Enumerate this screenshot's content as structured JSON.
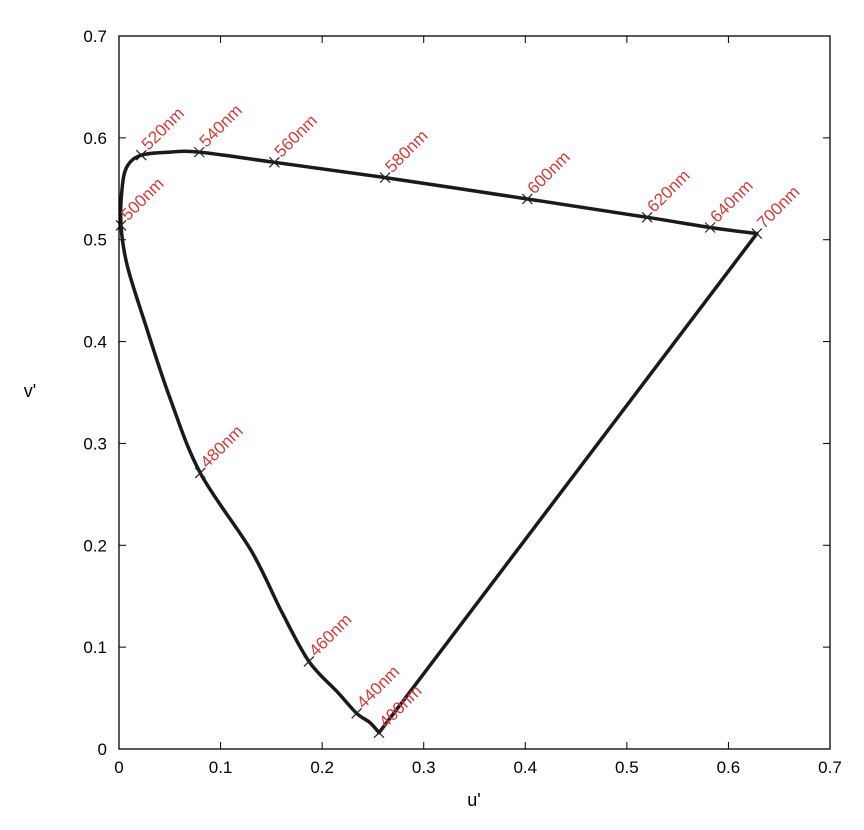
{
  "chart_data": {
    "type": "line",
    "title": "",
    "xlabel": "u'",
    "ylabel": "v'",
    "xlim": [
      0,
      0.7
    ],
    "ylim": [
      0,
      0.7
    ],
    "x_ticks": [
      "0",
      "0.1",
      "0.2",
      "0.3",
      "0.4",
      "0.5",
      "0.6",
      "0.7"
    ],
    "y_ticks": [
      "0",
      "0.1",
      "0.2",
      "0.3",
      "0.4",
      "0.5",
      "0.6",
      "0.7"
    ],
    "grid": false,
    "colors": {
      "line": "#1a1a1a",
      "label": "#d43a3a",
      "frame": "#000000"
    },
    "locus": [
      [
        0.256,
        0.016
      ],
      [
        0.247,
        0.026
      ],
      [
        0.234,
        0.035
      ],
      [
        0.215,
        0.056
      ],
      [
        0.187,
        0.086
      ],
      [
        0.16,
        0.135
      ],
      [
        0.13,
        0.195
      ],
      [
        0.08,
        0.271
      ],
      [
        0.05,
        0.345
      ],
      [
        0.025,
        0.42
      ],
      [
        0.008,
        0.475
      ],
      [
        0.002,
        0.514
      ],
      [
        0.003,
        0.55
      ],
      [
        0.008,
        0.572
      ],
      [
        0.022,
        0.583
      ],
      [
        0.05,
        0.586
      ],
      [
        0.079,
        0.586
      ],
      [
        0.153,
        0.576
      ],
      [
        0.262,
        0.561
      ],
      [
        0.402,
        0.54
      ],
      [
        0.52,
        0.522
      ],
      [
        0.582,
        0.512
      ],
      [
        0.628,
        0.506
      ]
    ],
    "purple_line": [
      [
        0.628,
        0.506
      ],
      [
        0.256,
        0.016
      ]
    ],
    "markers": [
      {
        "label": "400nm",
        "u": 0.256,
        "v": 0.016
      },
      {
        "label": "440nm",
        "u": 0.234,
        "v": 0.035
      },
      {
        "label": "460nm",
        "u": 0.187,
        "v": 0.086
      },
      {
        "label": "480nm",
        "u": 0.08,
        "v": 0.271
      },
      {
        "label": "500nm",
        "u": 0.002,
        "v": 0.514
      },
      {
        "label": "520nm",
        "u": 0.022,
        "v": 0.583
      },
      {
        "label": "540nm",
        "u": 0.079,
        "v": 0.586
      },
      {
        "label": "560nm",
        "u": 0.153,
        "v": 0.576
      },
      {
        "label": "580nm",
        "u": 0.262,
        "v": 0.561
      },
      {
        "label": "600nm",
        "u": 0.402,
        "v": 0.54
      },
      {
        "label": "620nm",
        "u": 0.52,
        "v": 0.522
      },
      {
        "label": "640nm",
        "u": 0.582,
        "v": 0.512
      },
      {
        "label": "700nm",
        "u": 0.628,
        "v": 0.506
      }
    ]
  }
}
